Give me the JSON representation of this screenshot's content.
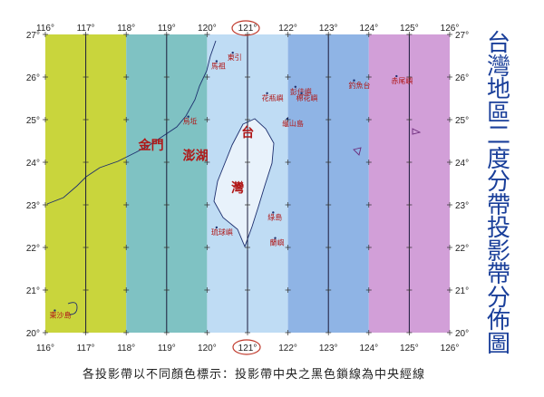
{
  "title": "台灣地區二度分帶投影帶分佈圖",
  "caption": "各投影帶以不同顏色標示：投影帶中央之黑色鎖線為中央經線",
  "longitude_labels": [
    "116°",
    "117°",
    "118°",
    "119°",
    "120°",
    "121°",
    "122°",
    "123°",
    "124°",
    "125°",
    "126°"
  ],
  "latitude_labels": [
    "27°",
    "26°",
    "25°",
    "24°",
    "23°",
    "22°",
    "21°",
    "20°"
  ],
  "highlighted_longitude": "121°",
  "highlight_color": "#c0392b",
  "zones": [
    {
      "from": 116,
      "to": 118,
      "central_meridian": 117,
      "color": "#c9d53c"
    },
    {
      "from": 118,
      "to": 120,
      "central_meridian": 119,
      "color": "#7fc2c3"
    },
    {
      "from": 120,
      "to": 122,
      "central_meridian": 121,
      "color": "#bfdcf4"
    },
    {
      "from": 122,
      "to": 124,
      "central_meridian": 123,
      "color": "#8fb4e5"
    },
    {
      "from": 124,
      "to": 126,
      "central_meridian": 125,
      "color": "#d29fd8"
    }
  ],
  "places": [
    {
      "name": "東引",
      "lon": 120.5,
      "lat": 26.4
    },
    {
      "name": "馬祖",
      "lon": 120.1,
      "lat": 26.2
    },
    {
      "name": "烏坵",
      "lon": 119.4,
      "lat": 24.9
    },
    {
      "name": "花瓶嶼",
      "lon": 121.35,
      "lat": 25.45
    },
    {
      "name": "彭佳嶼",
      "lon": 122.05,
      "lat": 25.6
    },
    {
      "name": "棉花嶼",
      "lon": 122.2,
      "lat": 25.45
    },
    {
      "name": "釣魚台",
      "lon": 123.5,
      "lat": 25.75
    },
    {
      "name": "赤尾嶼",
      "lon": 124.55,
      "lat": 25.85
    },
    {
      "name": "龜山島",
      "lon": 121.85,
      "lat": 24.85
    },
    {
      "name": "綠島",
      "lon": 121.5,
      "lat": 22.65
    },
    {
      "name": "蘭嶼",
      "lon": 121.55,
      "lat": 22.05
    },
    {
      "name": "琉球嶼",
      "lon": 120.1,
      "lat": 22.3
    },
    {
      "name": "東沙島",
      "lon": 116.1,
      "lat": 20.35
    }
  ],
  "big_places": [
    {
      "name": "金門",
      "lon": 118.3,
      "lat": 24.3
    },
    {
      "name": "澎湖",
      "lon": 119.4,
      "lat": 24.05
    },
    {
      "name": "台",
      "lon": 120.85,
      "lat": 24.6
    },
    {
      "name": "灣",
      "lon": 120.6,
      "lat": 23.3
    }
  ]
}
